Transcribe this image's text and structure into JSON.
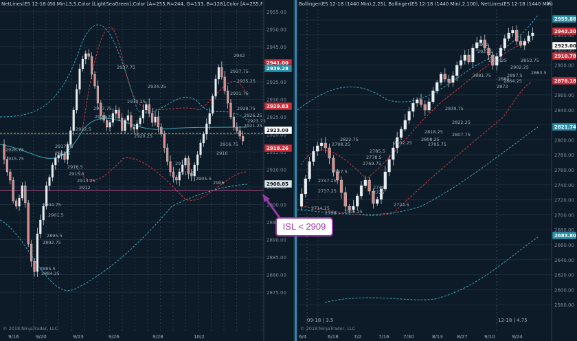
{
  "left_chart": {
    "header": "NetLines(ES 12-18 (60 Min),3,5,Color [LightSeaGreen],Color [A=255,R=244, G=133, B=128],Color [A=255,R=0, G=131",
    "y_ticks": [
      "2955.00",
      "2950.00",
      "2945.00",
      "2940.00",
      "2935.00",
      "2930.00",
      "2925.00",
      "2920.00",
      "2915.00",
      "2910.00",
      "2905.00",
      "2900.00",
      "2895.00",
      "2890.00",
      "2885.00",
      "2880.00",
      "2875.00"
    ],
    "price_tags": [
      {
        "label": "2941.00",
        "color": "#cc2e3a",
        "dark": false
      },
      {
        "label": "2939.28",
        "color": "#2a8fa8",
        "dark": false
      },
      {
        "label": "2929.83",
        "color": "#cc2e3a",
        "dark": false
      },
      {
        "label": "2923.00",
        "color": "#ffffff",
        "dark": true
      },
      {
        "label": "2918.26",
        "color": "#cc2e3a",
        "dark": false
      },
      {
        "label": "2908.85",
        "color": "#d8e4ea",
        "dark": true
      }
    ],
    "date_labels": [
      "9/16",
      "9/20",
      "9/23",
      "9/26",
      "9/28",
      "10/2"
    ],
    "copyright": "© 2018 NinjaTrader, LLC",
    "annotations": [
      "2926.75",
      "2915.75",
      "2917.75",
      "2923.5",
      "2922.5",
      "2927.75",
      "2928.75",
      "2930.25",
      "2937.75",
      "2934.25",
      "2942",
      "2937.75",
      "2935.25",
      "2931.75",
      "2928.75",
      "2926.25",
      "2923.75",
      "2921.25",
      "2920.25",
      "2916.75",
      "2916",
      "2912.5",
      "2910.5",
      "2906",
      "2905.5",
      "2904.75",
      "2901.5",
      "2895.5",
      "2892.75",
      "2885.5",
      "2884.25",
      "2916.5",
      "2915.5",
      "2913.25",
      "2912"
    ]
  },
  "right_chart": {
    "header": "Bollinger(ES 12-18 (1440 Min),2,25), Bollinger(ES 12-18 (1440 Min),2,100), NetLines(ES 12-18 (1440 Min),3,5,Color",
    "y_ticks": [
      "2960.00",
      "2940.00",
      "2920.00",
      "2900.00",
      "2880.00",
      "2860.00",
      "2840.00",
      "2820.00",
      "2800.00",
      "2780.00",
      "2760.00",
      "2740.00",
      "2720.00",
      "2700.00",
      "2680.00",
      "2660.00",
      "2640.00",
      "2620.00",
      "2600.00",
      "2580.00"
    ],
    "price_tags": [
      {
        "label": "2959.88",
        "color": "#2a8fa8",
        "dark": false
      },
      {
        "label": "2943.30",
        "color": "#cc2e3a",
        "dark": false
      },
      {
        "label": "2923.00",
        "color": "#ffffff",
        "dark": true
      },
      {
        "label": "2910.78",
        "color": "#cc2e3a",
        "dark": false
      },
      {
        "label": "2878.18",
        "color": "#cc2e3a",
        "dark": false
      },
      {
        "label": "2821.74",
        "color": "#2a8fa8",
        "dark": false
      },
      {
        "label": "2683.80",
        "color": "#2a8fa8",
        "dark": false
      }
    ],
    "date_labels": [
      "6/4",
      "6/18",
      "7/2",
      "7/16",
      "7/30",
      "8/13",
      "8/27",
      "9/10",
      "9/24"
    ],
    "copyright": "© 2018 NinjaTrader, LLC",
    "contract_left": "09-18 | 3.5",
    "contract_right": "12-18 | 4.75",
    "annotations": [
      "2932",
      "2927.5",
      "2913.25",
      "2902.25",
      "2897.5",
      "2881.75",
      "2880",
      "2873",
      "2864.25",
      "2863.5",
      "2853.75",
      "2839.75",
      "2822.25",
      "2818.25",
      "2807.75",
      "2795.75",
      "2785.5",
      "2778.5",
      "2769.75",
      "2757.5",
      "2747.25",
      "2737.25",
      "2749",
      "2736",
      "2724.5",
      "2714.25",
      "2708",
      "2706.25",
      "2802.25",
      "2808.25",
      "2798.25",
      "2822.75"
    ]
  },
  "callout": {
    "text": "ISL < 2909",
    "color": "#9a3aa6"
  }
}
